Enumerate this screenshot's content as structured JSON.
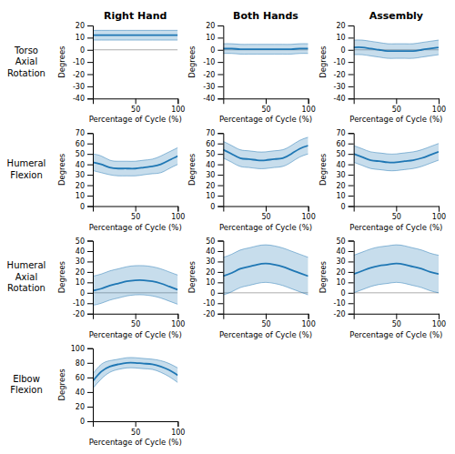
{
  "chart_data": [
    {
      "type": "line",
      "title": "Right Hand",
      "annotations": [
        "Torso\nAxial\nRotation"
      ],
      "xlabel": "Percentage of Cycle (%)",
      "ylabel": "Degrees",
      "grid": false,
      "x": [
        0,
        10,
        20,
        30,
        40,
        50,
        60,
        70,
        80,
        90,
        100
      ],
      "values": [
        12,
        12,
        12,
        12,
        12,
        12,
        12,
        12,
        12,
        12,
        12
      ],
      "lower": [
        8,
        8,
        8,
        8,
        8,
        8,
        8,
        8,
        8,
        8,
        8
      ],
      "upper": [
        16,
        16,
        16,
        16,
        16,
        16,
        16,
        16,
        16,
        16,
        16
      ],
      "xlim": [
        0,
        100
      ],
      "xticks": [
        50,
        100
      ],
      "ylim": [
        -40,
        20
      ],
      "yticks": [
        -40,
        -30,
        -20,
        -10,
        0,
        10,
        20
      ]
    },
    {
      "type": "line",
      "title": "Both Hands",
      "xlabel": "Percentage of Cycle (%)",
      "ylabel": "Degrees",
      "grid": false,
      "x": [
        0,
        10,
        20,
        30,
        40,
        50,
        60,
        70,
        80,
        90,
        100
      ],
      "values": [
        1,
        1,
        0.5,
        0.5,
        0.5,
        0.5,
        0.5,
        0.5,
        0.5,
        1,
        1
      ],
      "lower": [
        -3,
        -3,
        -3.5,
        -3.5,
        -3.5,
        -3.5,
        -3.5,
        -3.5,
        -3.5,
        -3,
        -3
      ],
      "upper": [
        5,
        5,
        4.5,
        4.5,
        4.5,
        4.5,
        4.5,
        4.5,
        4.5,
        5,
        5
      ],
      "xlim": [
        0,
        100
      ],
      "xticks": [
        50,
        100
      ],
      "ylim": [
        -40,
        20
      ],
      "yticks": [
        -40,
        -30,
        -20,
        -10,
        0,
        10,
        20
      ]
    },
    {
      "type": "line",
      "title": "Assembly",
      "xlabel": "Percentage of Cycle (%)",
      "ylabel": "Degrees",
      "grid": false,
      "x": [
        0,
        10,
        20,
        30,
        40,
        50,
        60,
        70,
        80,
        90,
        100
      ],
      "values": [
        2,
        2,
        1,
        0,
        -1,
        -1,
        -1,
        -1,
        0,
        1,
        2
      ],
      "lower": [
        -4,
        -4,
        -5,
        -6,
        -7,
        -7,
        -7,
        -7,
        -6,
        -5,
        -4
      ],
      "upper": [
        8,
        8,
        7,
        6,
        5,
        5,
        5,
        5,
        6,
        7,
        8
      ],
      "xlim": [
        0,
        100
      ],
      "xticks": [
        50,
        100
      ],
      "ylim": [
        -40,
        20
      ],
      "yticks": [
        -40,
        -30,
        -20,
        -10,
        0,
        10,
        20
      ]
    },
    {
      "type": "line",
      "annotations": [
        "Humeral\nFlexion"
      ],
      "xlabel": "Percentage of Cycle (%)",
      "ylabel": "Degrees",
      "grid": false,
      "x": [
        0,
        10,
        20,
        30,
        40,
        50,
        60,
        70,
        80,
        90,
        100
      ],
      "values": [
        42,
        40,
        37,
        36,
        36,
        36,
        37,
        38,
        40,
        44,
        48
      ],
      "lower": [
        34,
        32,
        30,
        29,
        29,
        29,
        30,
        31,
        32,
        36,
        40
      ],
      "upper": [
        50,
        48,
        44,
        43,
        43,
        43,
        44,
        45,
        48,
        52,
        56
      ],
      "xlim": [
        0,
        100
      ],
      "xticks": [
        50,
        100
      ],
      "ylim": [
        0,
        70
      ],
      "yticks": [
        0,
        10,
        20,
        30,
        40,
        50,
        60,
        70
      ]
    },
    {
      "type": "line",
      "xlabel": "Percentage of Cycle (%)",
      "ylabel": "Degrees",
      "grid": false,
      "x": [
        0,
        10,
        20,
        30,
        40,
        50,
        60,
        70,
        80,
        90,
        100
      ],
      "values": [
        54,
        50,
        46,
        45,
        44,
        44,
        45,
        46,
        50,
        55,
        58
      ],
      "lower": [
        46,
        42,
        38,
        37,
        36,
        36,
        37,
        38,
        42,
        47,
        50
      ],
      "upper": [
        62,
        58,
        54,
        53,
        52,
        52,
        53,
        54,
        58,
        63,
        66
      ],
      "xlim": [
        0,
        100
      ],
      "xticks": [
        50,
        100
      ],
      "ylim": [
        0,
        70
      ],
      "yticks": [
        0,
        10,
        20,
        30,
        40,
        50,
        60,
        70
      ]
    },
    {
      "type": "line",
      "xlabel": "Percentage of Cycle (%)",
      "ylabel": "Degrees",
      "grid": false,
      "x": [
        0,
        10,
        20,
        30,
        40,
        50,
        60,
        70,
        80,
        90,
        100
      ],
      "values": [
        50,
        47,
        44,
        43,
        42,
        42,
        43,
        44,
        46,
        49,
        52
      ],
      "lower": [
        42,
        39,
        36,
        35,
        34,
        34,
        35,
        36,
        38,
        41,
        44
      ],
      "upper": [
        58,
        55,
        52,
        51,
        50,
        50,
        51,
        52,
        54,
        57,
        60
      ],
      "xlim": [
        0,
        100
      ],
      "xticks": [
        50,
        100
      ],
      "ylim": [
        0,
        70
      ],
      "yticks": [
        0,
        10,
        20,
        30,
        40,
        50,
        60,
        70
      ]
    },
    {
      "type": "line",
      "annotations": [
        "Humeral\nAxial\nRotation"
      ],
      "xlabel": "Percentage of Cycle (%)",
      "ylabel": "Degrees",
      "grid": false,
      "x": [
        0,
        10,
        20,
        30,
        40,
        50,
        60,
        70,
        80,
        90,
        100
      ],
      "values": [
        2,
        4,
        7,
        9,
        11,
        12,
        12,
        11,
        9,
        6,
        3
      ],
      "lower": [
        -12,
        -10,
        -7,
        -5,
        -3,
        -2,
        -2,
        -3,
        -5,
        -8,
        -11
      ],
      "upper": [
        16,
        18,
        21,
        23,
        25,
        26,
        26,
        25,
        23,
        20,
        17
      ],
      "xlim": [
        0,
        100
      ],
      "xticks": [
        50,
        100
      ],
      "ylim": [
        -20,
        50
      ],
      "yticks": [
        -20,
        -10,
        0,
        10,
        20,
        30,
        40,
        50
      ]
    },
    {
      "type": "line",
      "xlabel": "Percentage of Cycle (%)",
      "ylabel": "Degrees",
      "grid": false,
      "x": [
        0,
        10,
        20,
        30,
        40,
        50,
        60,
        70,
        80,
        90,
        100
      ],
      "values": [
        16,
        19,
        23,
        25,
        27,
        28,
        27,
        25,
        22,
        19,
        16
      ],
      "lower": [
        -2,
        1,
        5,
        7,
        9,
        10,
        9,
        7,
        4,
        1,
        -2
      ],
      "upper": [
        34,
        37,
        41,
        43,
        45,
        46,
        45,
        43,
        40,
        37,
        34
      ],
      "xlim": [
        0,
        100
      ],
      "xticks": [
        50,
        100
      ],
      "ylim": [
        -20,
        50
      ],
      "yticks": [
        -20,
        -10,
        0,
        10,
        20,
        30,
        40,
        50
      ]
    },
    {
      "type": "line",
      "xlabel": "Percentage of Cycle (%)",
      "ylabel": "Degrees",
      "grid": false,
      "x": [
        0,
        10,
        20,
        30,
        40,
        50,
        60,
        70,
        80,
        90,
        100
      ],
      "values": [
        18,
        21,
        24,
        26,
        27,
        28,
        27,
        25,
        23,
        20,
        18
      ],
      "lower": [
        0,
        3,
        6,
        8,
        9,
        10,
        9,
        7,
        5,
        2,
        0
      ],
      "upper": [
        36,
        39,
        42,
        44,
        45,
        46,
        45,
        43,
        41,
        38,
        36
      ],
      "xlim": [
        0,
        100
      ],
      "xticks": [
        50,
        100
      ],
      "ylim": [
        -20,
        50
      ],
      "yticks": [
        -20,
        -10,
        0,
        10,
        20,
        30,
        40,
        50
      ]
    },
    {
      "type": "line",
      "annotations": [
        "Elbow\nFlexion"
      ],
      "xlabel": "Percentage of Cycle (%)",
      "ylabel": "Degrees",
      "grid": false,
      "x": [
        0,
        10,
        20,
        30,
        40,
        50,
        60,
        70,
        80,
        90,
        100
      ],
      "values": [
        55,
        68,
        75,
        78,
        80,
        80,
        79,
        78,
        75,
        70,
        63
      ],
      "lower": [
        45,
        58,
        67,
        71,
        73,
        73,
        72,
        71,
        67,
        61,
        53
      ],
      "upper": [
        65,
        78,
        83,
        85,
        87,
        87,
        86,
        85,
        83,
        79,
        73
      ],
      "xlim": [
        0,
        100
      ],
      "xticks": [
        50,
        100
      ],
      "ylim": [
        0,
        100
      ],
      "yticks": [
        0,
        20,
        40,
        60,
        80,
        100
      ]
    }
  ]
}
